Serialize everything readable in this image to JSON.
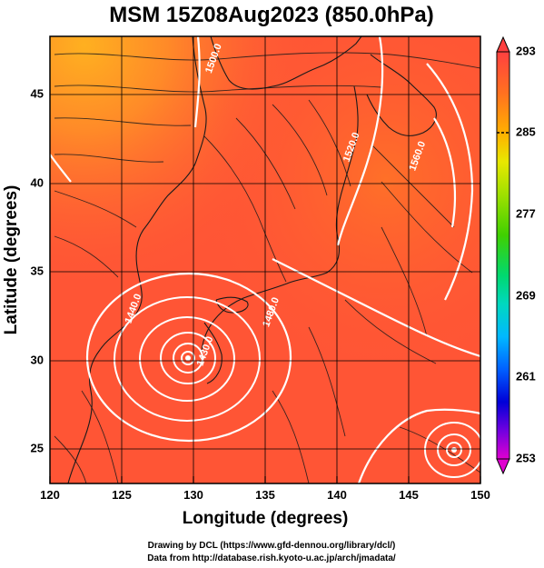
{
  "title": "MSM 15Z08Aug2023 (850.0hPa)",
  "x_axis": {
    "label": "Longitude (degrees)",
    "ticks": [
      "120",
      "125",
      "130",
      "135",
      "140",
      "145",
      "150"
    ],
    "range": [
      120,
      150
    ]
  },
  "y_axis": {
    "label": "Latitude  (degrees)",
    "ticks": [
      "25",
      "30",
      "35",
      "40",
      "45"
    ],
    "range": [
      22.4,
      47.6
    ]
  },
  "colorbar": {
    "ticks": [
      "293",
      "285",
      "277",
      "269",
      "261",
      "253"
    ],
    "range": [
      253,
      293
    ],
    "colors": [
      "#e000d0",
      "#7000e0",
      "#0000d8",
      "#0060ff",
      "#00b8ff",
      "#00d8c0",
      "#00d870",
      "#40d000",
      "#a0e000",
      "#e8e800",
      "#ffb000",
      "#ff7020",
      "#ff4040"
    ]
  },
  "contour_labels": [
    {
      "text": "1500.0",
      "lon": 131.6,
      "lat": 46.3
    },
    {
      "text": "1520.0",
      "lon": 141.2,
      "lat": 41.3
    },
    {
      "text": "1560.0",
      "lon": 145.8,
      "lat": 40.8
    },
    {
      "text": "1440.0",
      "lon": 126.0,
      "lat": 32.2
    },
    {
      "text": "1430.0",
      "lon": 131.0,
      "lat": 29.8
    },
    {
      "text": "1480.0",
      "lon": 135.6,
      "lat": 32.0
    }
  ],
  "map_colors": {
    "cold_edge": "#ff9a2a",
    "warm_north": "#ff7a28",
    "main": "#ff5535",
    "sea_warm": "#ff6040",
    "frame": "#000000"
  },
  "credits": {
    "line1": "Drawing by DCL (https://www.gfd-dennou.org/library/dcl/)",
    "line2": "Data from http://database.rish.kyoto-u.ac.jp/arch/jmadata/"
  }
}
